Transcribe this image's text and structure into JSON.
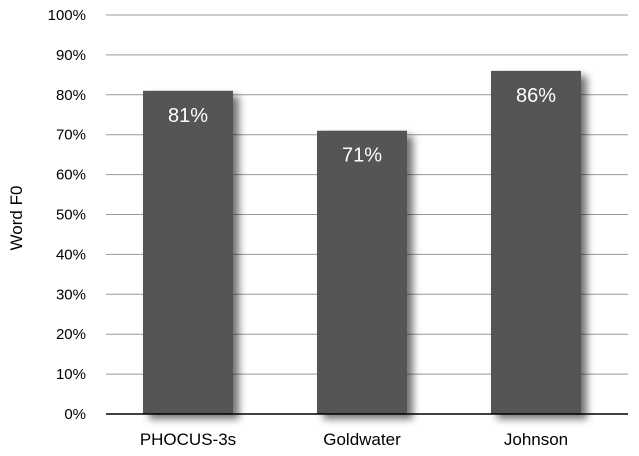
{
  "chart_data": {
    "type": "bar",
    "categories": [
      "PHOCUS-3s",
      "Goldwater",
      "Johnson"
    ],
    "values": [
      81,
      71,
      86
    ],
    "data_labels": [
      "81%",
      "71%",
      "86%"
    ],
    "title": "",
    "xlabel": "",
    "ylabel": "Word F0",
    "ylim": [
      0,
      100
    ],
    "yticks": [
      0,
      10,
      20,
      30,
      40,
      50,
      60,
      70,
      80,
      90,
      100
    ],
    "ytick_labels": [
      "0%",
      "10%",
      "20%",
      "30%",
      "40%",
      "50%",
      "60%",
      "70%",
      "80%",
      "90%",
      "100%"
    ],
    "grid": true,
    "legend": "none",
    "colors": {
      "bar": "#555555",
      "bar_shadow": "#9a9a9a",
      "grid": "#999999",
      "axis": "#000000",
      "label_text": "#ffffff",
      "tick_text": "#000000"
    }
  }
}
